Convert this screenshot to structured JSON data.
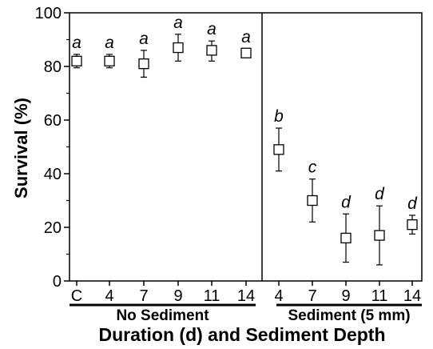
{
  "chart_data": {
    "type": "scatter",
    "ylabel": "Survival (%)",
    "xlabel": "Duration (d) and Sediment Depth",
    "ylim": [
      0,
      100
    ],
    "yticks": [
      0,
      20,
      40,
      60,
      80,
      100
    ],
    "grid": false,
    "legend": "none",
    "groups": [
      {
        "label": "No Sediment",
        "categories": [
          "C",
          "4",
          "7",
          "9",
          "11",
          "14"
        ]
      },
      {
        "label": "Sediment (5 mm)",
        "categories": [
          "4",
          "7",
          "9",
          "11",
          "14"
        ]
      }
    ],
    "points": [
      {
        "group": "No Sediment",
        "category": "C",
        "y": 82,
        "lower": 79.5,
        "upper": 84.5,
        "letter": "a"
      },
      {
        "group": "No Sediment",
        "category": "4",
        "y": 82,
        "lower": 79.5,
        "upper": 84.5,
        "letter": "a"
      },
      {
        "group": "No Sediment",
        "category": "7",
        "y": 81,
        "lower": 76,
        "upper": 86,
        "letter": "a"
      },
      {
        "group": "No Sediment",
        "category": "9",
        "y": 87,
        "lower": 82,
        "upper": 92,
        "letter": "a"
      },
      {
        "group": "No Sediment",
        "category": "11",
        "y": 86,
        "lower": 82,
        "upper": 89.5,
        "letter": "a"
      },
      {
        "group": "No Sediment",
        "category": "14",
        "y": 85,
        "lower": 83.5,
        "upper": 86.5,
        "letter": "a"
      },
      {
        "group": "Sediment (5 mm)",
        "category": "4",
        "y": 49,
        "lower": 41,
        "upper": 57,
        "letter": "b"
      },
      {
        "group": "Sediment (5 mm)",
        "category": "7",
        "y": 30,
        "lower": 22,
        "upper": 38,
        "letter": "c"
      },
      {
        "group": "Sediment (5 mm)",
        "category": "9",
        "y": 16,
        "lower": 7,
        "upper": 25,
        "letter": "d"
      },
      {
        "group": "Sediment (5 mm)",
        "category": "11",
        "y": 17,
        "lower": 6,
        "upper": 28,
        "letter": "d"
      },
      {
        "group": "Sediment (5 mm)",
        "category": "14",
        "y": 21,
        "lower": 17.5,
        "upper": 24.5,
        "letter": "d"
      }
    ]
  }
}
